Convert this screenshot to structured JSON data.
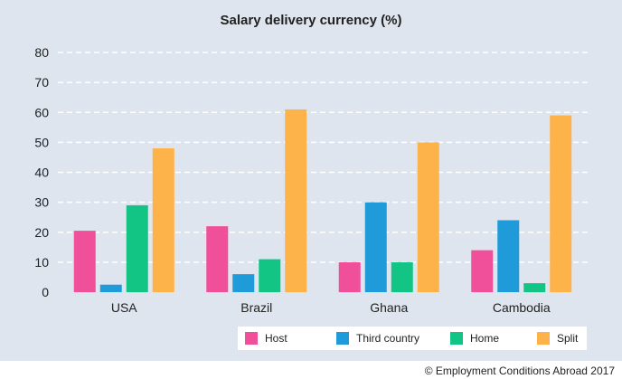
{
  "chart_data": {
    "type": "bar",
    "title": "Salary delivery currency (%)",
    "categories": [
      "USA",
      "Brazil",
      "Ghana",
      "Cambodia"
    ],
    "series": [
      {
        "name": "Host",
        "color": "#f0509a",
        "values": [
          20.5,
          22,
          10,
          14
        ]
      },
      {
        "name": "Third country",
        "color": "#1e9bd8",
        "values": [
          2.5,
          6,
          30,
          24
        ]
      },
      {
        "name": "Home",
        "color": "#12c585",
        "values": [
          29,
          11,
          10,
          3
        ]
      },
      {
        "name": "Split",
        "color": "#fdb24a",
        "values": [
          48,
          61,
          50,
          59
        ]
      }
    ],
    "yticks": [
      "0",
      "10",
      "20",
      "30",
      "40",
      "50",
      "60",
      "70",
      "80"
    ],
    "ylim": [
      0,
      80
    ],
    "grid": "dashed horizontal",
    "legend_position": "bottom-right",
    "xlabel": "",
    "ylabel": ""
  },
  "footer": {
    "copyright": "© Employment Conditions Abroad 2017"
  }
}
